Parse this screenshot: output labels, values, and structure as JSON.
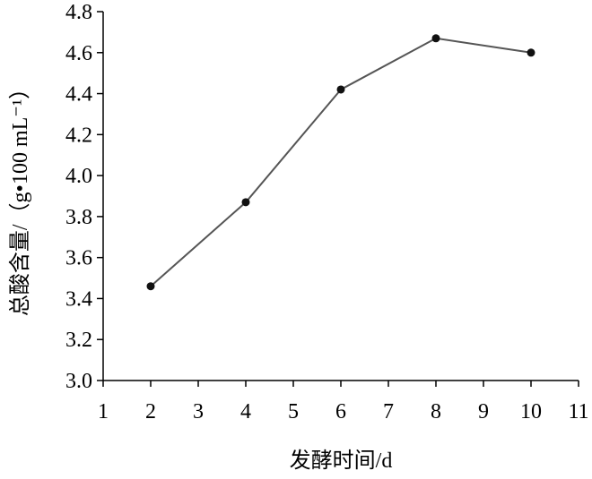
{
  "chart_data": {
    "type": "line",
    "x_label": "发酵时间/d",
    "y_label": "总酸含量/（g•100 mL⁻¹）",
    "series": [
      {
        "color": "#555555",
        "x": [
          2,
          4,
          6,
          8,
          10
        ],
        "values": [
          3.46,
          3.87,
          4.42,
          4.67,
          4.6
        ]
      }
    ],
    "xlim": [
      1,
      11
    ],
    "xticks": [
      1,
      2,
      3,
      4,
      5,
      6,
      7,
      8,
      9,
      10,
      11
    ],
    "ylim": [
      3.0,
      4.8
    ],
    "yticks": [
      {
        "value": 3.0,
        "label": "3.0"
      },
      3.2,
      3.4,
      3.6,
      3.8,
      {
        "value": 4.0,
        "label": "4.0"
      },
      4.2,
      4.4,
      4.6,
      4.8
    ]
  }
}
